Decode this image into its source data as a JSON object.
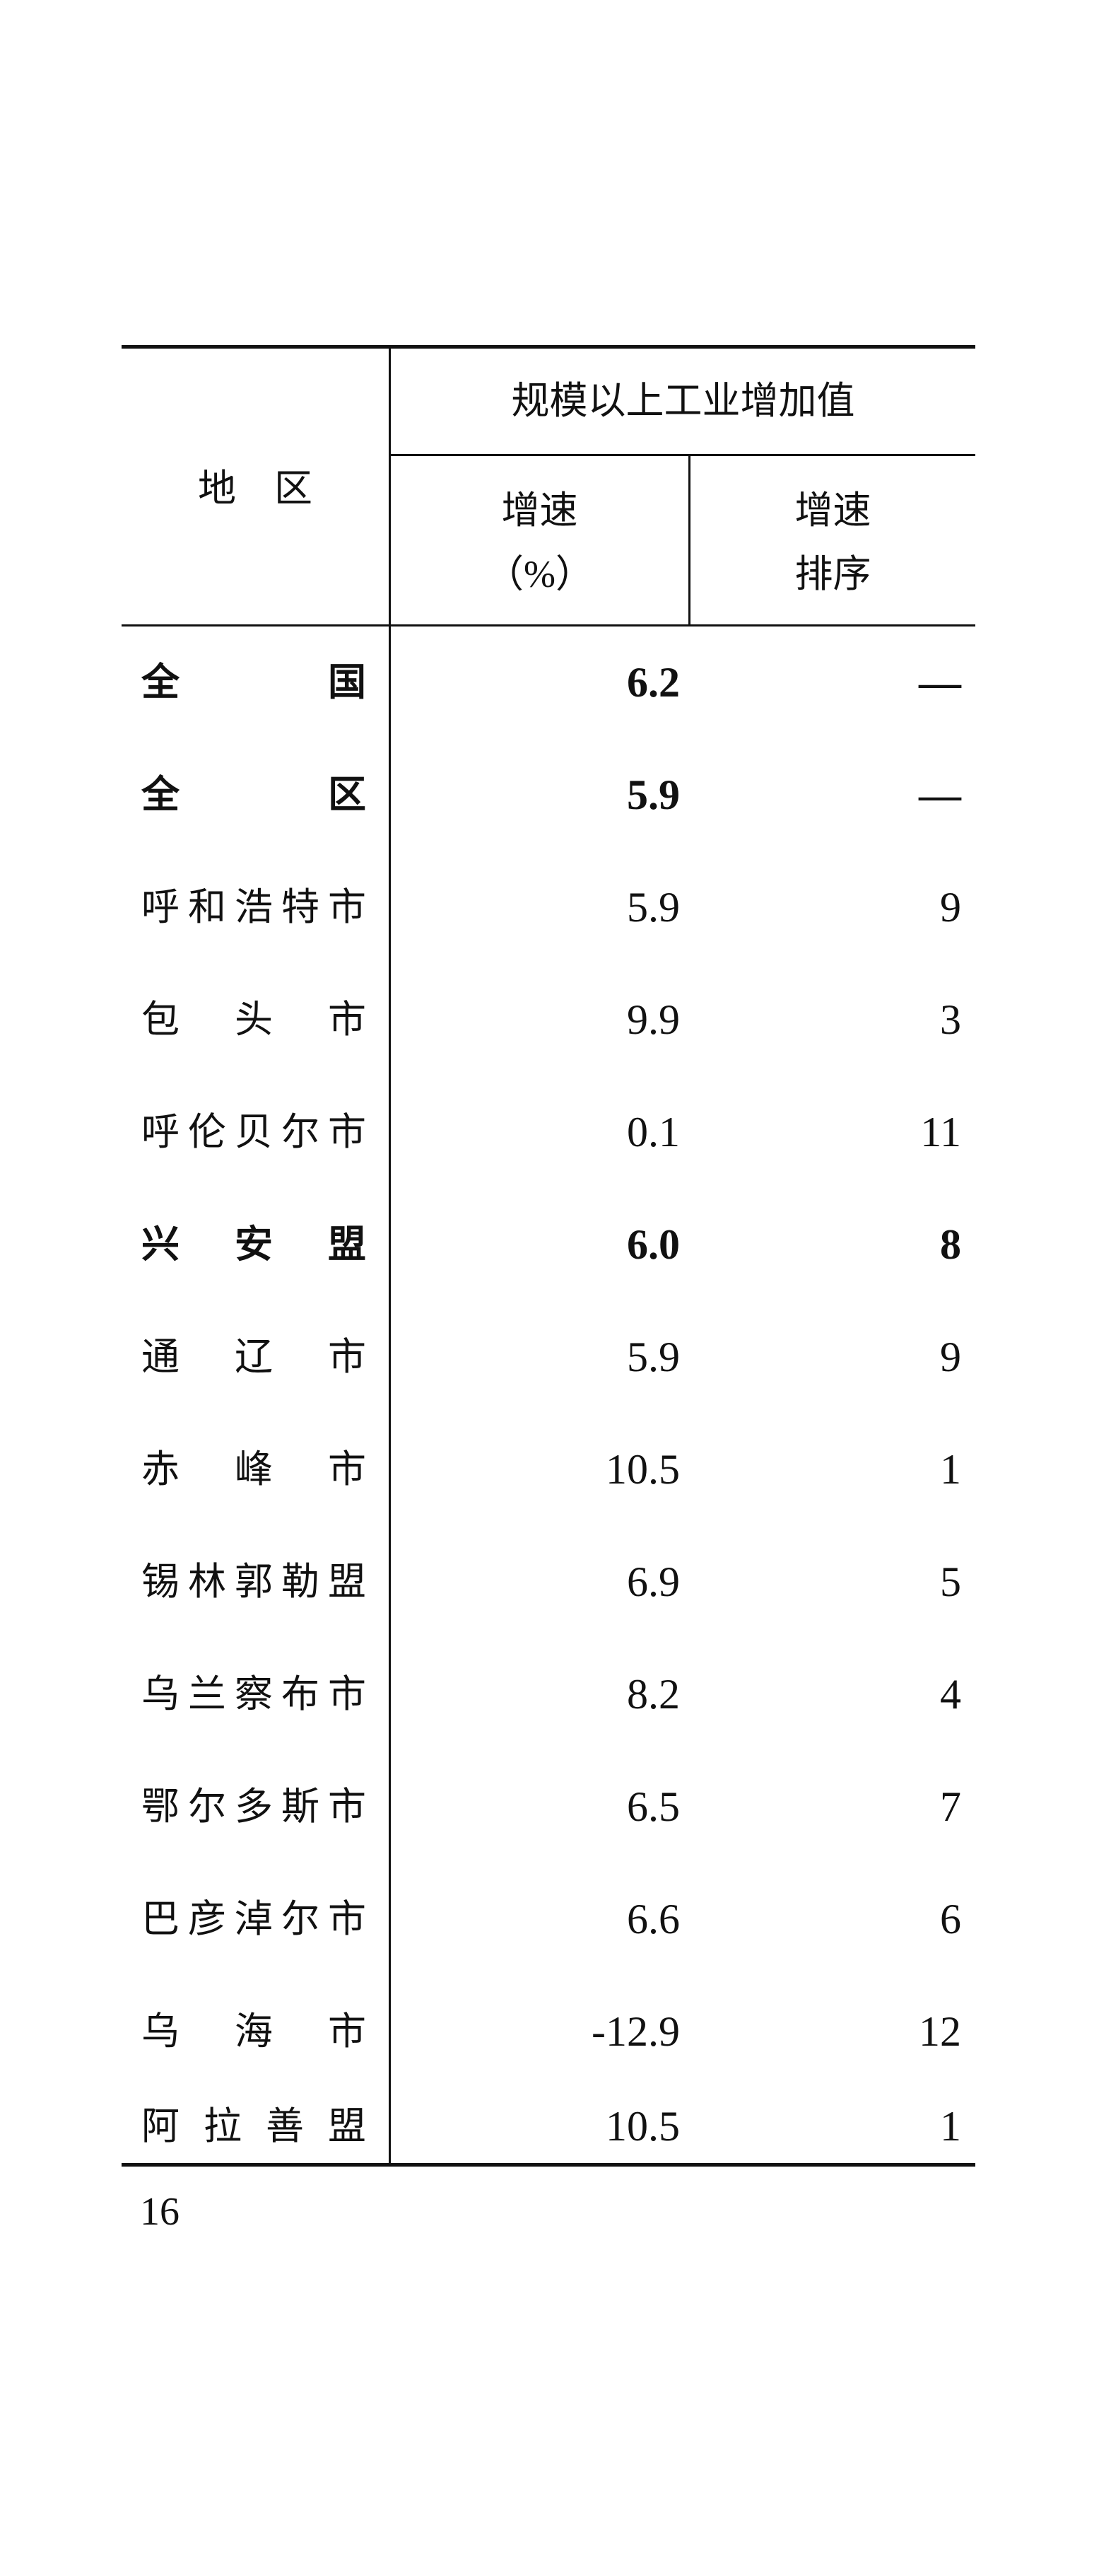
{
  "table": {
    "col_region": "地　区",
    "col_group": "规模以上工业增加值",
    "col_growth": [
      "增速",
      "（%）"
    ],
    "col_rank": [
      "增速",
      "排序"
    ],
    "rows": [
      {
        "region": "全国",
        "growth": "6.2",
        "rank": "—",
        "bold": true
      },
      {
        "region": "全区",
        "growth": "5.9",
        "rank": "—",
        "bold": true
      },
      {
        "region": "呼和浩特市",
        "growth": "5.9",
        "rank": "9",
        "bold": false
      },
      {
        "region": "包头市",
        "growth": "9.9",
        "rank": "3",
        "bold": false
      },
      {
        "region": "呼伦贝尔市",
        "growth": "0.1",
        "rank": "11",
        "bold": false
      },
      {
        "region": "兴安盟",
        "growth": "6.0",
        "rank": "8",
        "bold": true
      },
      {
        "region": "通辽市",
        "growth": "5.9",
        "rank": "9",
        "bold": false
      },
      {
        "region": "赤峰市",
        "growth": "10.5",
        "rank": "1",
        "bold": false
      },
      {
        "region": "锡林郭勒盟",
        "growth": "6.9",
        "rank": "5",
        "bold": false
      },
      {
        "region": "乌兰察布市",
        "growth": "8.2",
        "rank": "4",
        "bold": false
      },
      {
        "region": "鄂尔多斯市",
        "growth": "6.5",
        "rank": "7",
        "bold": false
      },
      {
        "region": "巴彦淖尔市",
        "growth": "6.6",
        "rank": "6",
        "bold": false
      },
      {
        "region": "乌海市",
        "growth": "-12.9",
        "rank": "12",
        "bold": false
      },
      {
        "region": "阿拉善盟",
        "growth": "10.5",
        "rank": "1",
        "bold": false
      }
    ]
  },
  "page_number": "16"
}
